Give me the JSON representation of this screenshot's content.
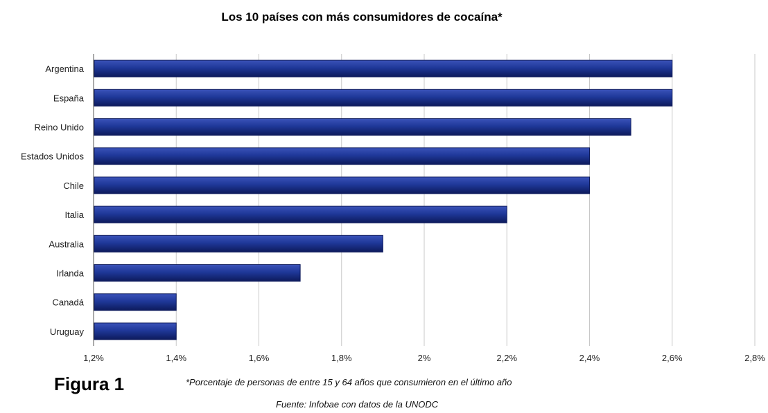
{
  "figure_label": "Figura 1",
  "note": "*Porcentaje de personas de entre 15 y 64 años que consumieron en el último año",
  "source": "Fuente: Infobae con datos de la UNODC",
  "colors": {
    "bar": "#1f3899",
    "bar_dark": "#0d1a5c",
    "bar_light": "#4d63c4",
    "grid": "#c8c8c8"
  },
  "chart_data": {
    "type": "bar",
    "orientation": "horizontal",
    "title": "Los 10 países con más consumidores de cocaína*",
    "xlabel": "",
    "ylabel": "",
    "categories": [
      "Argentina",
      "España",
      "Reino Unido",
      "Estados Unidos",
      "Chile",
      "Italia",
      "Australia",
      "Irlanda",
      "Canadá",
      "Uruguay"
    ],
    "values": [
      2.6,
      2.6,
      2.5,
      2.4,
      2.4,
      2.2,
      1.9,
      1.7,
      1.4,
      1.4
    ],
    "xlim": [
      1.2,
      2.8
    ],
    "ticks": [
      1.2,
      1.4,
      1.6,
      1.8,
      2.0,
      2.2,
      2.4,
      2.6,
      2.8
    ],
    "tick_labels": [
      "1,2%",
      "1,4%",
      "1,6%",
      "1,8%",
      "2%",
      "2,2%",
      "2,4%",
      "2,6%",
      "2,8%"
    ],
    "grid": true,
    "legend": "none"
  }
}
